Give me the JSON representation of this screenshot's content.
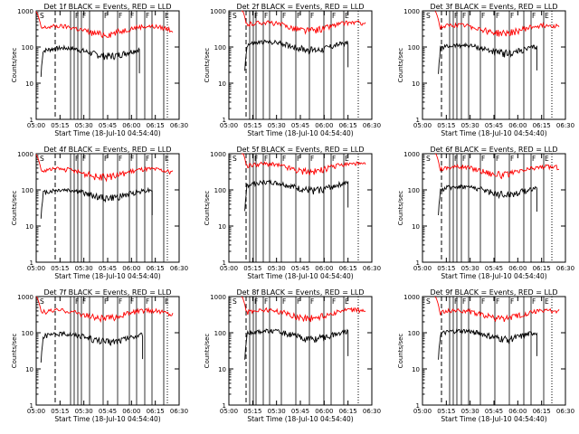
{
  "chart_data": [
    {
      "type": "line",
      "title": "Det 1f BLACK = Events, RED = LLD",
      "xlabel": "Start Time (18-Jul-10 04:54:40)",
      "ylabel": "Counts/sec",
      "yscale": "log",
      "ylim": [
        1,
        1000
      ],
      "xlim": [
        "05:00",
        "06:30"
      ],
      "xticks": [
        "05:00",
        "05:15",
        "05:30",
        "05:45",
        "06:00",
        "06:15",
        "06:30"
      ],
      "yticks": [
        "1",
        "10",
        "100",
        "1000"
      ],
      "series": [
        {
          "name": "Events",
          "color": "#000000",
          "start": "05:03",
          "end": "06:05",
          "level": 75
        },
        {
          "name": "LLD",
          "color": "#ff0000",
          "start": "05:00",
          "end": "06:26",
          "level": 300
        }
      ],
      "annotations": [
        "S",
        "F",
        "F",
        "F",
        "F",
        "F",
        "F",
        "E"
      ]
    },
    {
      "type": "line",
      "title": "Det 2f BLACK = Events, RED = LLD",
      "xlabel": "Start Time (18-Jul-10 04:54:40)",
      "ylabel": "Counts/sec",
      "yscale": "log",
      "ylim": [
        1,
        1000
      ],
      "xlim": [
        "05:00",
        "06:30"
      ],
      "xticks": [
        "05:00",
        "05:15",
        "05:30",
        "05:45",
        "06:00",
        "06:15",
        "06:30"
      ],
      "yticks": [
        "1",
        "10",
        "100",
        "1000"
      ],
      "series": [
        {
          "name": "Events",
          "color": "#000000",
          "start": "05:10",
          "end": "06:15",
          "level": 110
        },
        {
          "name": "LLD",
          "color": "#ff0000",
          "start": "05:08",
          "end": "06:26",
          "level": 380
        }
      ],
      "annotations": [
        "S",
        "F",
        "F",
        "F",
        "F",
        "F",
        "F",
        "E"
      ]
    },
    {
      "type": "line",
      "title": "Det 3f BLACK = Events, RED = LLD",
      "xlabel": "Start Time (18-Jul-10 04:54:40)",
      "ylabel": "Counts/sec",
      "yscale": "log",
      "ylim": [
        1,
        1000
      ],
      "xlim": [
        "05:00",
        "06:30"
      ],
      "xticks": [
        "05:00",
        "05:15",
        "05:30",
        "05:45",
        "06:00",
        "06:15",
        "06:30"
      ],
      "yticks": [
        "1",
        "10",
        "100",
        "1000"
      ],
      "series": [
        {
          "name": "Events",
          "color": "#000000",
          "start": "05:10",
          "end": "06:12",
          "level": 90
        },
        {
          "name": "LLD",
          "color": "#ff0000",
          "start": "05:08",
          "end": "06:26",
          "level": 320
        }
      ],
      "annotations": [
        "S",
        "F",
        "F",
        "F",
        "F",
        "F",
        "F",
        "E"
      ]
    },
    {
      "type": "line",
      "title": "Det 4f BLACK = Events, RED = LLD",
      "xlabel": "Start Time (18-Jul-10 04:54:40)",
      "ylabel": "Counts/sec",
      "yscale": "log",
      "ylim": [
        1,
        1000
      ],
      "xlim": [
        "05:00",
        "06:30"
      ],
      "xticks": [
        "05:00",
        "05:15",
        "05:30",
        "05:45",
        "06:00",
        "06:15",
        "06:30"
      ],
      "yticks": [
        "1",
        "10",
        "100",
        "1000"
      ],
      "series": [
        {
          "name": "Events",
          "color": "#000000",
          "start": "05:03",
          "end": "06:13",
          "level": 80
        },
        {
          "name": "LLD",
          "color": "#ff0000",
          "start": "05:00",
          "end": "06:26",
          "level": 300
        }
      ],
      "annotations": [
        "S",
        "F",
        "F",
        "F",
        "F",
        "F",
        "F",
        "E"
      ]
    },
    {
      "type": "line",
      "title": "Det 5f BLACK = Events, RED = LLD",
      "xlabel": "Start Time (18-Jul-10 04:54:40)",
      "ylabel": "Counts/sec",
      "yscale": "log",
      "ylim": [
        1,
        1000
      ],
      "xlim": [
        "05:00",
        "06:30"
      ],
      "xticks": [
        "05:00",
        "05:15",
        "05:30",
        "05:45",
        "06:00",
        "06:15",
        "06:30"
      ],
      "yticks": [
        "1",
        "10",
        "100",
        "1000"
      ],
      "series": [
        {
          "name": "Events",
          "color": "#000000",
          "start": "05:10",
          "end": "06:15",
          "level": 130
        },
        {
          "name": "LLD",
          "color": "#ff0000",
          "start": "05:08",
          "end": "06:26",
          "level": 420
        }
      ],
      "annotations": [
        "S",
        "F",
        "F",
        "F",
        "F",
        "F",
        "F",
        "E"
      ]
    },
    {
      "type": "line",
      "title": "Det 6f BLACK = Events, RED = LLD",
      "xlabel": "Start Time (18-Jul-10 04:54:40)",
      "ylabel": "Counts/sec",
      "yscale": "log",
      "ylim": [
        1,
        1000
      ],
      "xlim": [
        "05:00",
        "06:30"
      ],
      "xticks": [
        "05:00",
        "05:15",
        "05:30",
        "05:45",
        "06:00",
        "06:15",
        "06:30"
      ],
      "yticks": [
        "1",
        "10",
        "100",
        "1000"
      ],
      "series": [
        {
          "name": "Events",
          "color": "#000000",
          "start": "05:10",
          "end": "06:12",
          "level": 100
        },
        {
          "name": "LLD",
          "color": "#ff0000",
          "start": "05:08",
          "end": "06:26",
          "level": 350
        }
      ],
      "annotations": [
        "S",
        "F",
        "F",
        "F",
        "F",
        "F",
        "F",
        "E"
      ]
    },
    {
      "type": "line",
      "title": "Det 7f BLACK = Events, RED = LLD",
      "xlabel": "Start Time (18-Jul-10 04:54:40)",
      "ylabel": "Counts/sec",
      "yscale": "log",
      "ylim": [
        1,
        1000
      ],
      "xlim": [
        "05:00",
        "06:30"
      ],
      "xticks": [
        "05:00",
        "05:15",
        "05:30",
        "05:45",
        "06:00",
        "06:15",
        "06:30"
      ],
      "yticks": [
        "1",
        "10",
        "100",
        "1000"
      ],
      "series": [
        {
          "name": "Events",
          "color": "#000000",
          "start": "05:03",
          "end": "06:07",
          "level": 75
        },
        {
          "name": "LLD",
          "color": "#ff0000",
          "start": "05:00",
          "end": "06:26",
          "level": 330
        }
      ],
      "annotations": [
        "S",
        "F",
        "F",
        "F",
        "F",
        "F",
        "F",
        "E"
      ]
    },
    {
      "type": "line",
      "title": "Det 8f BLACK = Events, RED = LLD",
      "xlabel": "Start Time (18-Jul-10 04:54:40)",
      "ylabel": "Counts/sec",
      "yscale": "log",
      "ylim": [
        1,
        1000
      ],
      "xlim": [
        "05:00",
        "06:30"
      ],
      "xticks": [
        "05:00",
        "05:15",
        "05:30",
        "05:45",
        "06:00",
        "06:15",
        "06:30"
      ],
      "yticks": [
        "1",
        "10",
        "100",
        "1000"
      ],
      "series": [
        {
          "name": "Events",
          "color": "#000000",
          "start": "05:10",
          "end": "06:15",
          "level": 90
        },
        {
          "name": "LLD",
          "color": "#ff0000",
          "start": "05:08",
          "end": "06:26",
          "level": 340
        }
      ],
      "annotations": [
        "S",
        "F",
        "F",
        "F",
        "F",
        "F",
        "F",
        "E"
      ]
    },
    {
      "type": "line",
      "title": "Det 9f BLACK = Events, RED = LLD",
      "xlabel": "Start Time (18-Jul-10 04:54:40)",
      "ylabel": "Counts/sec",
      "yscale": "log",
      "ylim": [
        1,
        1000
      ],
      "xlim": [
        "05:00",
        "06:30"
      ],
      "xticks": [
        "05:00",
        "05:15",
        "05:30",
        "05:45",
        "06:00",
        "06:15",
        "06:30"
      ],
      "yticks": [
        "1",
        "10",
        "100",
        "1000"
      ],
      "series": [
        {
          "name": "Events",
          "color": "#000000",
          "start": "05:10",
          "end": "06:12",
          "level": 90
        },
        {
          "name": "LLD",
          "color": "#ff0000",
          "start": "05:08",
          "end": "06:26",
          "level": 330
        }
      ],
      "annotations": [
        "S",
        "F",
        "F",
        "F",
        "F",
        "F",
        "F",
        "E"
      ]
    }
  ]
}
